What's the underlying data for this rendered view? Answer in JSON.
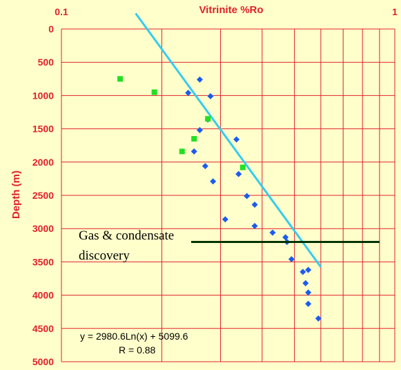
{
  "chart_data": {
    "type": "scatter",
    "title": "Vitrinite %Ro",
    "ylabel": "Depth (m)",
    "x_scale": "log",
    "xlim": [
      0.1,
      1
    ],
    "ylim": [
      0,
      5000
    ],
    "y_inverted": true,
    "x_tick_labels": [
      "0.1",
      "1"
    ],
    "y_tick_labels": [
      "0",
      "500",
      "1000",
      "1500",
      "2000",
      "2500",
      "3000",
      "3500",
      "4000",
      "4500",
      "5000"
    ],
    "grid": true,
    "colors": {
      "background": "#ffffcc",
      "grid": "#e0202a",
      "blue_points": "#1a5cf0",
      "green_points": "#22e022",
      "trendline": "#33ccee",
      "annotation_line": "#003300",
      "text_red": "#e0202a"
    },
    "series": [
      {
        "marker": "diamond",
        "color": "#1a5cf0",
        "points": [
          {
            "x": 0.26,
            "y": 760
          },
          {
            "x": 0.24,
            "y": 960
          },
          {
            "x": 0.28,
            "y": 1010
          },
          {
            "x": 0.275,
            "y": 1360
          },
          {
            "x": 0.26,
            "y": 1520
          },
          {
            "x": 0.335,
            "y": 1660
          },
          {
            "x": 0.25,
            "y": 1840
          },
          {
            "x": 0.27,
            "y": 2060
          },
          {
            "x": 0.285,
            "y": 2290
          },
          {
            "x": 0.34,
            "y": 2180
          },
          {
            "x": 0.36,
            "y": 2510
          },
          {
            "x": 0.38,
            "y": 2640
          },
          {
            "x": 0.31,
            "y": 2860
          },
          {
            "x": 0.38,
            "y": 2960
          },
          {
            "x": 0.43,
            "y": 3060
          },
          {
            "x": 0.47,
            "y": 3130
          },
          {
            "x": 0.475,
            "y": 3200
          },
          {
            "x": 0.49,
            "y": 3460
          },
          {
            "x": 0.53,
            "y": 3650
          },
          {
            "x": 0.55,
            "y": 3620
          },
          {
            "x": 0.54,
            "y": 3820
          },
          {
            "x": 0.55,
            "y": 3960
          },
          {
            "x": 0.55,
            "y": 4130
          },
          {
            "x": 0.59,
            "y": 4350
          }
        ]
      },
      {
        "marker": "square",
        "color": "#22e022",
        "points": [
          {
            "x": 0.15,
            "y": 750
          },
          {
            "x": 0.19,
            "y": 950
          },
          {
            "x": 0.275,
            "y": 1350
          },
          {
            "x": 0.25,
            "y": 1650
          },
          {
            "x": 0.23,
            "y": 1840
          },
          {
            "x": 0.35,
            "y": 2080
          }
        ]
      }
    ],
    "trendline": {
      "equation": "y = 2980.6Ln(x) + 5099.6",
      "r_label": "R  = 0.88",
      "x_range": [
        0.167,
        0.6
      ]
    },
    "annotation": {
      "line1": "Gas & condensate",
      "line2": "discovery",
      "depth": 3200,
      "x_range": [
        0.245,
        0.9
      ]
    }
  }
}
